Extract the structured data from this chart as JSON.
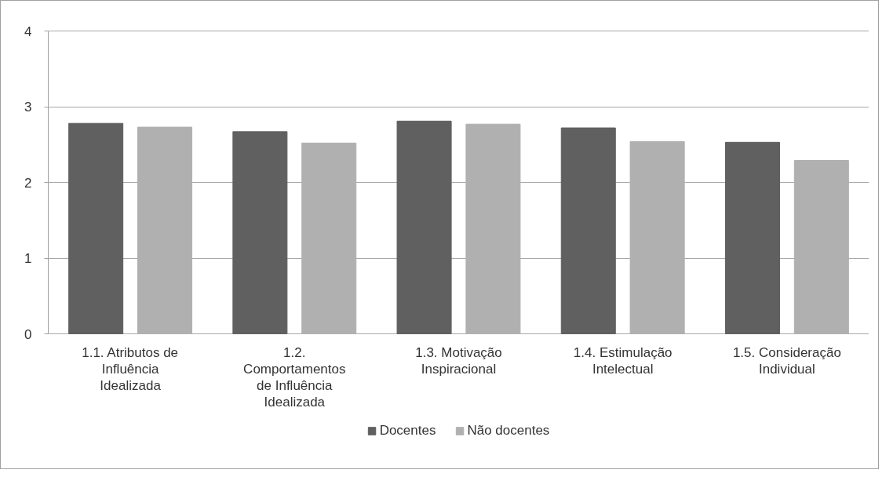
{
  "chart_data": {
    "type": "bar",
    "categories": [
      "1.1. Atributos de Influência Idealizada",
      "1.2. Comportamentos de Influência Idealizada",
      "1.3. Motivação Inspiracional",
      "1.4. Estimulação Intelectual",
      "1.5. Consideração Individual"
    ],
    "series": [
      {
        "name": "Docentes",
        "color": "#606060",
        "values": [
          2.78,
          2.67,
          2.81,
          2.72,
          2.53
        ]
      },
      {
        "name": "Não docentes",
        "color": "#b0b0b0",
        "values": [
          2.73,
          2.52,
          2.77,
          2.54,
          2.29
        ]
      }
    ],
    "ylim": [
      0,
      4
    ],
    "yticks": [
      0,
      1,
      2,
      3,
      4
    ],
    "grid": "y",
    "legend": "bottom"
  }
}
